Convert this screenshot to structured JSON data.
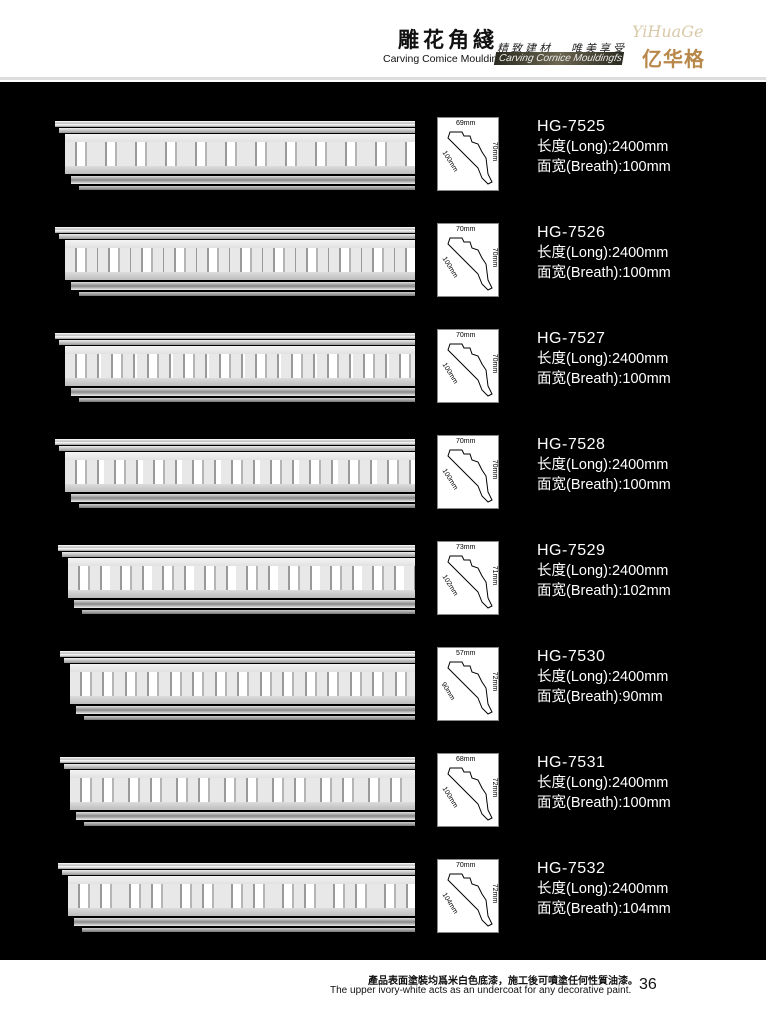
{
  "header": {
    "title_cn": "雕花角綫",
    "title_en": "Carving Comice Mouldings",
    "slogan_1": "精致建材",
    "slogan_2": "唯美享受",
    "banner": "Carving Cornice Mouldingfs",
    "logo_script": "YiHuaGe",
    "logo_cn": "亿华格"
  },
  "products": [
    {
      "code": "HG-7525",
      "length": "长度(Long):2400mm",
      "width": "面宽(Breath):100mm",
      "dim_top": "69mm",
      "dim_right": "70mm",
      "dim_diag": "100mm"
    },
    {
      "code": "HG-7526",
      "length": "长度(Long):2400mm",
      "width": "面宽(Breath):100mm",
      "dim_top": "70mm",
      "dim_right": "70mm",
      "dim_diag": "100mm"
    },
    {
      "code": "HG-7527",
      "length": "长度(Long):2400mm",
      "width": "面宽(Breath):100mm",
      "dim_top": "70mm",
      "dim_right": "70mm",
      "dim_diag": "100mm"
    },
    {
      "code": "HG-7528",
      "length": "长度(Long):2400mm",
      "width": "面宽(Breath):100mm",
      "dim_top": "70mm",
      "dim_right": "70mm",
      "dim_diag": "100mm"
    },
    {
      "code": "HG-7529",
      "length": "长度(Long):2400mm",
      "width": "面宽(Breath):102mm",
      "dim_top": "73mm",
      "dim_right": "71mm",
      "dim_diag": "102mm"
    },
    {
      "code": "HG-7530",
      "length": "长度(Long):2400mm",
      "width": "面宽(Breath):90mm",
      "dim_top": "57mm",
      "dim_right": "72mm",
      "dim_diag": "90mm"
    },
    {
      "code": "HG-7531",
      "length": "长度(Long):2400mm",
      "width": "面宽(Breath):100mm",
      "dim_top": "68mm",
      "dim_right": "72mm",
      "dim_diag": "100mm"
    },
    {
      "code": "HG-7532",
      "length": "长度(Long):2400mm",
      "width": "面宽(Breath):104mm",
      "dim_top": "70mm",
      "dim_right": "72mm",
      "dim_diag": "104mm"
    }
  ],
  "footer": {
    "note_cn": "產品表面塗裝均爲米白色底漆，施工後可噴塗任何性質油漆。",
    "note_en": "The upper ivory-white acts as an undercoat for any decorative paint.",
    "page": "36"
  }
}
